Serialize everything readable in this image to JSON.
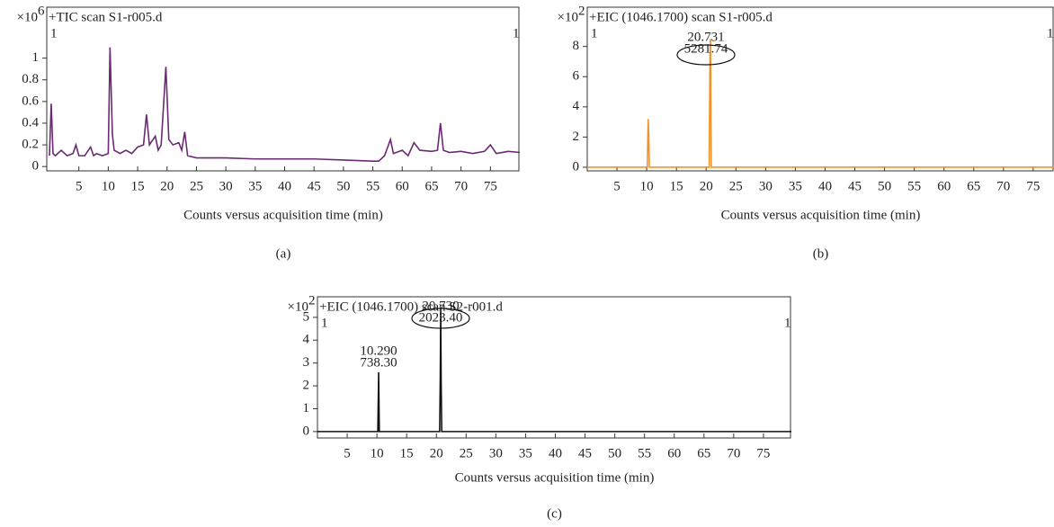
{
  "chart_data": [
    {
      "type": "line",
      "title": "+TIC scan S1-r005.d",
      "y_unit": "×10",
      "y_unit_exp": "6",
      "corner_marks": [
        "1",
        "1"
      ],
      "xlabel": "Counts versus acquisition time (min)",
      "panel_label": "(a)",
      "color": "#6b2a73",
      "x": [
        0,
        0.3,
        0.6,
        1,
        2,
        3,
        4,
        4.5,
        5,
        6,
        7,
        7.5,
        8,
        9,
        10,
        10.3,
        10.7,
        11,
        12,
        13,
        14,
        15,
        16,
        16.5,
        17,
        18,
        18.5,
        19,
        19.8,
        20.3,
        21,
        22,
        22.5,
        23,
        23.5,
        25,
        30,
        35,
        40,
        45,
        50,
        55,
        56,
        57,
        58,
        58.5,
        60,
        61,
        62,
        63,
        65,
        66,
        66.5,
        67,
        68,
        70,
        72,
        74,
        75,
        76,
        78,
        80
      ],
      "values": [
        0.1,
        0.58,
        0.12,
        0.1,
        0.15,
        0.1,
        0.12,
        0.2,
        0.1,
        0.1,
        0.18,
        0.1,
        0.12,
        0.1,
        0.12,
        1.1,
        0.3,
        0.15,
        0.12,
        0.15,
        0.12,
        0.18,
        0.2,
        0.48,
        0.2,
        0.28,
        0.15,
        0.2,
        0.92,
        0.25,
        0.2,
        0.22,
        0.15,
        0.32,
        0.1,
        0.08,
        0.08,
        0.07,
        0.07,
        0.07,
        0.06,
        0.05,
        0.05,
        0.1,
        0.25,
        0.12,
        0.15,
        0.1,
        0.22,
        0.15,
        0.14,
        0.15,
        0.4,
        0.15,
        0.13,
        0.14,
        0.12,
        0.14,
        0.2,
        0.12,
        0.14,
        0.13
      ],
      "xlim": [
        0,
        80
      ],
      "ylim": [
        -0.04,
        1.47
      ],
      "xticks": [
        5,
        10,
        15,
        20,
        25,
        30,
        35,
        40,
        45,
        50,
        55,
        60,
        65,
        70,
        75
      ],
      "yticks": [
        0,
        0.2,
        0.4,
        0.6,
        0.8,
        1
      ],
      "annotations": []
    },
    {
      "type": "line",
      "title": "+EIC (1046.1700) scan S1-r005.d",
      "y_unit": "×10",
      "y_unit_exp": "2",
      "corner_marks": [
        "1",
        "1"
      ],
      "xlabel": "Counts versus acquisition time (min)",
      "panel_label": "(b)",
      "color": "#f0922b",
      "x": [
        0,
        10.1,
        10.25,
        10.35,
        10.45,
        20.5,
        20.65,
        20.73,
        20.85,
        78.5
      ],
      "values": [
        0,
        0,
        3.2,
        2,
        0,
        0,
        7.5,
        8.5,
        0,
        0
      ],
      "xlim": [
        0,
        78.5
      ],
      "ylim": [
        -0.24,
        10.6
      ],
      "xticks": [
        5,
        10,
        15,
        20,
        25,
        30,
        35,
        40,
        45,
        50,
        55,
        60,
        65,
        70,
        75
      ],
      "yticks": [
        0,
        2,
        4,
        6,
        8
      ],
      "annotations": [
        [
          "20.731",
          "5281.74"
        ]
      ]
    },
    {
      "type": "line",
      "title": "+EIC (1046.1700) scan S2-r001.d",
      "y_unit": "×10",
      "y_unit_exp": "2",
      "corner_marks": [
        "1",
        "1"
      ],
      "xlabel": "Counts versus acquisition time (min)",
      "panel_label": "(c)",
      "color": "#111111",
      "x": [
        0,
        10.15,
        10.29,
        10.4,
        20.55,
        20.65,
        20.73,
        20.8,
        20.9,
        79.7
      ],
      "values": [
        0,
        0,
        2.6,
        0,
        0,
        2.3,
        5.3,
        2.2,
        0,
        0
      ],
      "xlim": [
        0,
        79.7
      ],
      "ylim": [
        -0.28,
        5.9
      ],
      "xticks": [
        5,
        10,
        15,
        20,
        25,
        30,
        35,
        40,
        45,
        50,
        55,
        60,
        65,
        70,
        75
      ],
      "yticks": [
        0,
        1,
        2,
        3,
        4,
        5
      ],
      "annotations": [
        [
          "10.290",
          "738.30"
        ],
        [
          "20.730",
          "2023.40"
        ]
      ]
    }
  ]
}
